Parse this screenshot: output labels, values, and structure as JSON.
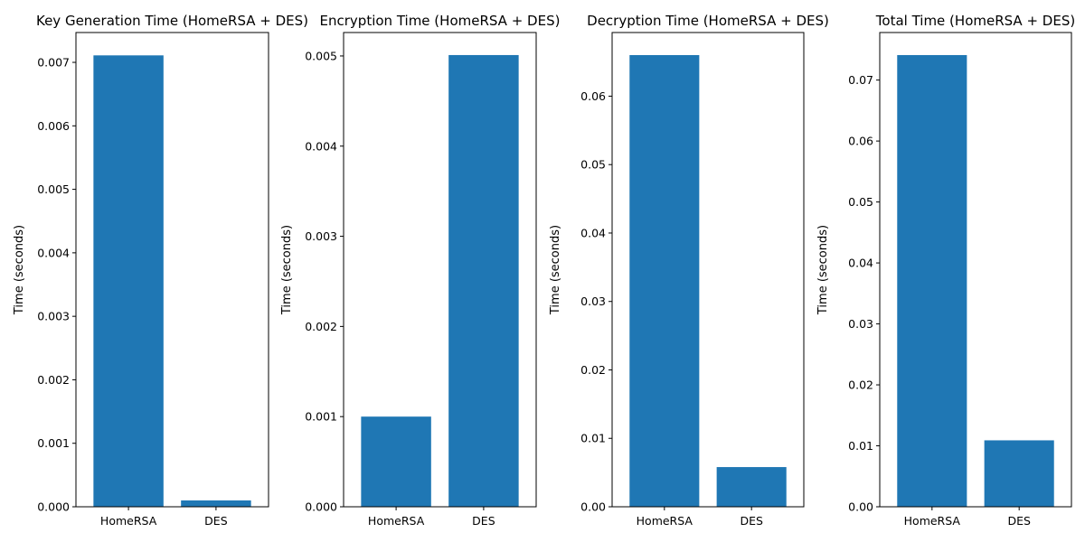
{
  "chart_data": [
    {
      "type": "bar",
      "title": "Key Generation Time (HomeRSA + DES)",
      "ylabel": "Time (seconds)",
      "categories": [
        "HomeRSA",
        "DES"
      ],
      "values": [
        0.00711,
        0.0001
      ],
      "ylim": [
        0,
        0.00747
      ],
      "yticks": [
        "0.000",
        "0.001",
        "0.002",
        "0.003",
        "0.004",
        "0.005",
        "0.006",
        "0.007"
      ],
      "ytick_values": [
        0,
        0.001,
        0.002,
        0.003,
        0.004,
        0.005,
        0.006,
        0.007
      ],
      "color": "#1f77b4"
    },
    {
      "type": "bar",
      "title": "Encryption Time (HomeRSA + DES)",
      "ylabel": "Time (seconds)",
      "categories": [
        "HomeRSA",
        "DES"
      ],
      "values": [
        0.001,
        0.00501
      ],
      "ylim": [
        0,
        0.00526
      ],
      "yticks": [
        "0.000",
        "0.001",
        "0.002",
        "0.003",
        "0.004",
        "0.005"
      ],
      "ytick_values": [
        0,
        0.001,
        0.002,
        0.003,
        0.004,
        0.005
      ],
      "color": "#1f77b4"
    },
    {
      "type": "bar",
      "title": "Decryption Time (HomeRSA + DES)",
      "ylabel": "Time (seconds)",
      "categories": [
        "HomeRSA",
        "DES"
      ],
      "values": [
        0.066,
        0.0058
      ],
      "ylim": [
        0,
        0.0693
      ],
      "yticks": [
        "0.00",
        "0.01",
        "0.02",
        "0.03",
        "0.04",
        "0.05",
        "0.06"
      ],
      "ytick_values": [
        0,
        0.01,
        0.02,
        0.03,
        0.04,
        0.05,
        0.06
      ],
      "color": "#1f77b4"
    },
    {
      "type": "bar",
      "title": "Total Time (HomeRSA + DES)",
      "ylabel": "Time (seconds)",
      "categories": [
        "HomeRSA",
        "DES"
      ],
      "values": [
        0.0741,
        0.0109
      ],
      "ylim": [
        0,
        0.0778
      ],
      "yticks": [
        "0.00",
        "0.01",
        "0.02",
        "0.03",
        "0.04",
        "0.05",
        "0.06",
        "0.07"
      ],
      "ytick_values": [
        0,
        0.01,
        0.02,
        0.03,
        0.04,
        0.05,
        0.06,
        0.07
      ],
      "color": "#1f77b4"
    }
  ]
}
